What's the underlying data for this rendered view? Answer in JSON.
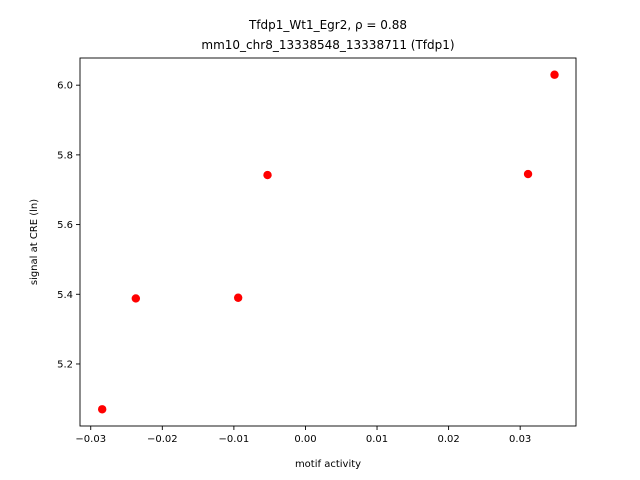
{
  "chart_data": {
    "type": "scatter",
    "title_line1": "Tfdp1_Wt1_Egr2, ρ = 0.88",
    "title_line2": "mm10_chr8_13338548_13338711 (Tfdp1)",
    "xlabel": "motif activity",
    "ylabel": "signal at CRE (ln)",
    "xlim": [
      -0.0315,
      0.0378
    ],
    "ylim": [
      5.022,
      6.078
    ],
    "x_ticks": [
      -0.03,
      -0.02,
      -0.01,
      0.0,
      0.01,
      0.02,
      0.03
    ],
    "x_tick_labels": [
      "−0.03",
      "−0.02",
      "−0.01",
      "0.00",
      "0.01",
      "0.02",
      "0.03"
    ],
    "y_ticks": [
      5.2,
      5.4,
      5.6,
      5.8,
      6.0
    ],
    "y_tick_labels": [
      "5.2",
      "5.4",
      "5.6",
      "5.8",
      "6.0"
    ],
    "marker_color": "#ff0000",
    "points": [
      {
        "x": -0.0284,
        "y": 5.07
      },
      {
        "x": -0.0237,
        "y": 5.388
      },
      {
        "x": -0.0094,
        "y": 5.39
      },
      {
        "x": -0.0053,
        "y": 5.742
      },
      {
        "x": 0.0311,
        "y": 5.745
      },
      {
        "x": 0.0348,
        "y": 6.03
      }
    ],
    "grid": false,
    "legend": "none"
  }
}
